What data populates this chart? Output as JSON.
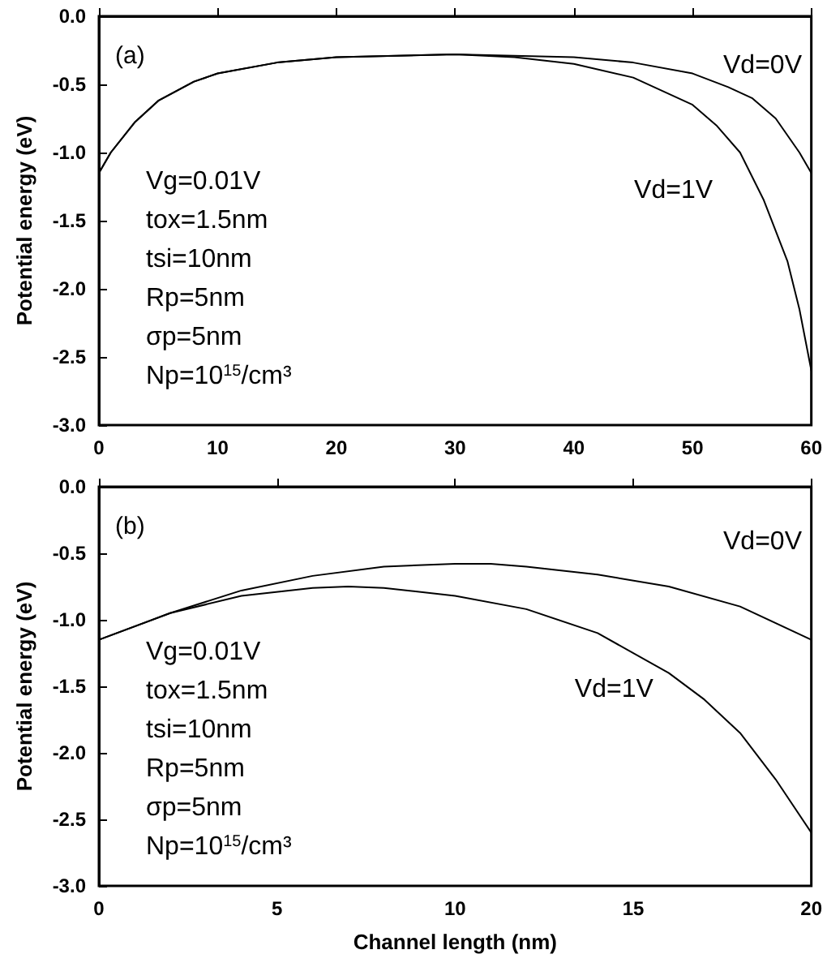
{
  "chart_data": [
    {
      "type": "line",
      "title": "(a)",
      "ylabel": "Potential energy (eV)",
      "xlim": [
        0,
        60
      ],
      "xticks": [
        0,
        10,
        20,
        30,
        40,
        50,
        60
      ],
      "ylim": [
        -3,
        0
      ],
      "yticks": [
        {
          "value": -3,
          "label": "-3.0"
        },
        {
          "value": -2.5,
          "label": "-2.5"
        },
        {
          "value": -2,
          "label": "-2.0"
        },
        {
          "value": -1.5,
          "label": "-1.5"
        },
        {
          "value": -1,
          "label": "-1.0"
        },
        {
          "value": -0.5,
          "label": "-0.5"
        },
        {
          "value": 0,
          "label": "0.0"
        }
      ],
      "grid": false,
      "legend": false,
      "marker": "none",
      "line_style": "solid",
      "annotations": [
        "Vg=0.01V",
        "tox=1.5nm",
        "tsi=10nm",
        "Rp=5nm",
        "σp=5nm",
        "Np=10$^{15}$/cm³"
      ],
      "series": [
        {
          "name": "Vd=0V",
          "color": "#000000",
          "x": [
            0,
            1,
            3,
            5,
            8,
            10,
            15,
            20,
            30,
            40,
            45,
            50,
            53,
            55,
            57,
            59,
            60
          ],
          "values": [
            -1.15,
            -1.0,
            -0.78,
            -0.62,
            -0.48,
            -0.42,
            -0.34,
            -0.3,
            -0.28,
            -0.3,
            -0.34,
            -0.42,
            -0.52,
            -0.6,
            -0.75,
            -1.0,
            -1.15
          ]
        },
        {
          "name": "Vd=1V",
          "color": "#000000",
          "x": [
            0,
            1,
            3,
            5,
            8,
            10,
            15,
            20,
            30,
            35,
            40,
            45,
            50,
            52,
            54,
            56,
            58,
            59,
            60
          ],
          "values": [
            -1.15,
            -1.0,
            -0.78,
            -0.62,
            -0.48,
            -0.42,
            -0.34,
            -0.3,
            -0.28,
            -0.3,
            -0.35,
            -0.45,
            -0.65,
            -0.8,
            -1.0,
            -1.35,
            -1.8,
            -2.15,
            -2.6
          ]
        }
      ]
    },
    {
      "type": "line",
      "title": "(b)",
      "xlabel": "Channel length (nm)",
      "ylabel": "Potential energy (eV)",
      "xlim": [
        0,
        20
      ],
      "xticks": [
        0,
        5,
        10,
        15,
        20
      ],
      "ylim": [
        -3,
        0
      ],
      "yticks": [
        {
          "value": -3,
          "label": "-3.0"
        },
        {
          "value": -2.5,
          "label": "-2.5"
        },
        {
          "value": -2,
          "label": "-2.0"
        },
        {
          "value": -1.5,
          "label": "-1.5"
        },
        {
          "value": -1,
          "label": "-1.0"
        },
        {
          "value": -0.5,
          "label": "-0.5"
        },
        {
          "value": 0,
          "label": "0.0"
        }
      ],
      "grid": false,
      "legend": false,
      "marker": "none",
      "line_style": "solid",
      "annotations": [
        "Vg=0.01V",
        "tox=1.5nm",
        "tsi=10nm",
        "Rp=5nm",
        "σp=5nm",
        "Np=10$^{15}$/cm³"
      ],
      "series": [
        {
          "name": "Vd=0V",
          "color": "#000000",
          "x": [
            0,
            2,
            4,
            6,
            8,
            10,
            11,
            12,
            14,
            16,
            18,
            20
          ],
          "values": [
            -1.15,
            -0.95,
            -0.78,
            -0.67,
            -0.6,
            -0.58,
            -0.58,
            -0.6,
            -0.66,
            -0.75,
            -0.9,
            -1.15
          ]
        },
        {
          "name": "Vd=1V",
          "color": "#000000",
          "x": [
            0,
            2,
            4,
            6,
            7,
            8,
            10,
            12,
            14,
            16,
            17,
            18,
            19,
            20
          ],
          "values": [
            -1.15,
            -0.95,
            -0.82,
            -0.76,
            -0.75,
            -0.76,
            -0.82,
            -0.92,
            -1.1,
            -1.4,
            -1.6,
            -1.85,
            -2.2,
            -2.6
          ]
        }
      ]
    }
  ]
}
